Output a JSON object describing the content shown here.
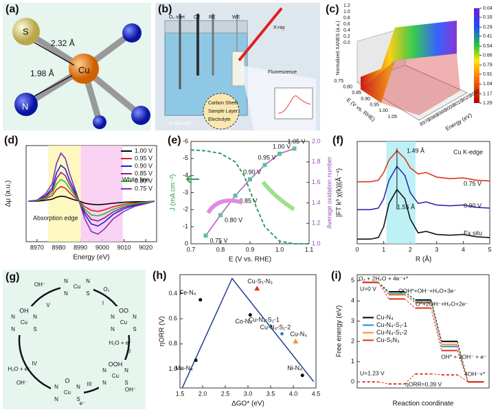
{
  "figure": {
    "a": {
      "label": "(a)",
      "atoms": [
        "S",
        "Cu",
        "N"
      ],
      "bonds": [
        "2.32 Å",
        "1.98 Å"
      ]
    },
    "b": {
      "label": "(b)",
      "texts": [
        "O₂ inlet",
        "CE",
        "RE",
        "WE",
        "X-ray",
        "Fluorescence",
        "In situ cell",
        "Carbon Sheet",
        "Sample Layer",
        "Electrolyte"
      ]
    },
    "c": {
      "label": "(c)",
      "z_label": "Normalized XANES (a.u.)",
      "y_label": "E (V vs. RHE)",
      "x_label": "Energy (eV)",
      "z_ticks": [
        "0.0",
        "0.2",
        "0.4",
        "0.6",
        "0.8",
        "1.0",
        "1.2"
      ],
      "e_ticks": [
        "0.75",
        "0.80",
        "0.85",
        "0.90",
        "0.95",
        "1.00",
        "1.05"
      ],
      "energy_ticks": [
        "8970",
        "8980",
        "8990",
        "9000",
        "9010",
        "9020",
        "9030"
      ],
      "colorbar": [
        0.04,
        0.16,
        0.29,
        0.41,
        0.54,
        0.66,
        0.79,
        0.91,
        1.04,
        1.17,
        1.29
      ]
    },
    "g": {
      "label": "(g)",
      "nodes": [
        {
          "atoms": [
            "Cu",
            "N",
            "N",
            "N",
            "S"
          ]
        },
        {
          "atoms": [
            "Cu",
            "N",
            "N",
            "N",
            "S"
          ],
          "adsorbate": "OO"
        },
        {
          "atoms": [
            "Cu",
            "N",
            "N",
            "N",
            "S"
          ],
          "adsorbate": "OOH"
        },
        {
          "atoms": [
            "Cu",
            "N",
            "N",
            "N",
            "S"
          ],
          "adsorbate": "O"
        },
        {
          "atoms": [
            "Cu",
            "N",
            "N",
            "N",
            "S"
          ],
          "adsorbate": "OH"
        }
      ],
      "steps": [
        "I",
        "II",
        "III",
        "IV",
        "V"
      ],
      "reagents": [
        "O₂",
        "H₂O + e⁻",
        "OH⁻",
        "e⁻",
        "H₂O + e⁻",
        "OH⁻",
        "OH⁻"
      ]
    }
  },
  "chart_data": [
    {
      "panel": "(d)",
      "type": "line",
      "x_label": "Energy (eV)",
      "y_label": "Δμ (a.u.)",
      "x": [
        8966,
        8970,
        8974,
        8977,
        8979,
        8981,
        8983,
        8985,
        8987,
        8989,
        8992,
        8995,
        8998,
        9001,
        9005,
        9010,
        9015,
        9020,
        9024
      ],
      "xlim": [
        8965,
        9025
      ],
      "xticks": [
        8970,
        8980,
        8990,
        9000,
        9010,
        9020
      ],
      "ylim": [
        -0.8,
        1.1
      ],
      "annotations": [
        "White line",
        "Absorption edge"
      ],
      "legend": "upper right",
      "series": [
        {
          "name": "1.00 V",
          "color": "#000000",
          "values": [
            0,
            0,
            0.02,
            0.04,
            0.08,
            0.1,
            0.09,
            0.06,
            0.03,
            0.01,
            -0.04,
            -0.06,
            -0.07,
            -0.06,
            -0.04,
            -0.02,
            -0.01,
            -0.01,
            0
          ]
        },
        {
          "name": "0.95 V",
          "color": "#e41a1c",
          "values": [
            0,
            0.01,
            0.05,
            0.11,
            0.23,
            0.29,
            0.26,
            0.17,
            0.09,
            0.02,
            -0.11,
            -0.18,
            -0.2,
            -0.17,
            -0.11,
            -0.06,
            -0.03,
            -0.02,
            0
          ]
        },
        {
          "name": "0.90 V",
          "color": "#1f1fd0",
          "values": [
            0,
            0.02,
            0.11,
            0.26,
            0.56,
            0.71,
            0.64,
            0.41,
            0.23,
            0.04,
            -0.26,
            -0.45,
            -0.49,
            -0.41,
            -0.26,
            -0.15,
            -0.08,
            -0.04,
            0
          ]
        },
        {
          "name": "0.85 V",
          "color": "#8b1a8b",
          "values": [
            0,
            0.01,
            0.09,
            0.21,
            0.45,
            0.57,
            0.51,
            0.33,
            0.18,
            0.03,
            -0.21,
            -0.36,
            -0.39,
            -0.33,
            -0.21,
            -0.12,
            -0.06,
            -0.03,
            0
          ]
        },
        {
          "name": "0.80 V",
          "color": "#22c222",
          "values": [
            0,
            0.01,
            0.07,
            0.16,
            0.34,
            0.43,
            0.38,
            0.25,
            0.14,
            0.02,
            -0.16,
            -0.27,
            -0.29,
            -0.25,
            -0.16,
            -0.09,
            -0.05,
            -0.02,
            0
          ]
        },
        {
          "name": "0.75 V",
          "color": "#7b2fbe",
          "values": [
            0,
            0.02,
            0.15,
            0.35,
            0.75,
            0.95,
            0.85,
            0.55,
            0.3,
            0.05,
            -0.35,
            -0.6,
            -0.65,
            -0.55,
            -0.35,
            -0.2,
            -0.1,
            -0.05,
            0
          ]
        }
      ]
    },
    {
      "panel": "(e)",
      "type": "line",
      "x_label": "E (V vs. RHE)",
      "y_label": "J (mA cm⁻²)",
      "y2_label": "Average oxidation number",
      "xlim": [
        0.7,
        1.1
      ],
      "xticks": [
        0.7,
        0.8,
        0.9,
        {
          "value": 1,
          "label": "1.0"
        },
        1.1
      ],
      "ylim": [
        0,
        -6
      ],
      "yticks": [
        0,
        -1,
        -2,
        -3,
        -4,
        -5,
        -6
      ],
      "y2lim": [
        1,
        2
      ],
      "y2ticks": [
        {
          "value": 1,
          "label": "1.0"
        },
        1.2,
        1.4,
        1.6,
        1.8,
        {
          "value": 2,
          "label": "2.0"
        }
      ],
      "series": [
        {
          "color": "#2aa05a",
          "dash": true,
          "x": [
            0.7,
            0.75,
            0.8,
            0.85,
            0.88,
            0.9,
            0.92,
            0.95,
            1.0,
            1.05,
            1.1
          ],
          "values": [
            -5.5,
            -5.45,
            -5.3,
            -4.8,
            -4.0,
            -3.1,
            -2.2,
            -1.0,
            -0.15,
            0,
            0
          ]
        },
        {
          "color": "#b05fc0",
          "axis": "y2",
          "markers": true,
          "x": [
            0.75,
            0.8,
            0.85,
            0.9,
            0.95,
            1.0,
            1.05
          ],
          "values": [
            1.08,
            1.28,
            1.47,
            1.63,
            1.77,
            1.88,
            1.93
          ],
          "point_labels": [
            "0.75 V",
            "0.80 V",
            "0.85 V",
            "0.90 V",
            "0.95 V",
            "1.00 V",
            "1.05 V"
          ]
        }
      ]
    },
    {
      "panel": "(f)",
      "type": "line",
      "x_label": "R (Å)",
      "y_label": "|FT k³ χ(k)|(Å⁻⁴)",
      "x": [
        0,
        0.5,
        0.8,
        1.0,
        1.2,
        1.5,
        1.8,
        2.0,
        2.3,
        2.6,
        3.0,
        3.5,
        4.0,
        4.5,
        5.0
      ],
      "xlim": [
        0,
        5
      ],
      "xticks": [
        0,
        1,
        2,
        3,
        4,
        5
      ],
      "ylim": [
        0,
        6.6
      ],
      "annotations": [
        "1.49 Å",
        "1.55 Å",
        "Cu K-edge"
      ],
      "series": [
        {
          "name": "0.75 V",
          "color": "#e0301e",
          "values": [
            4.0,
            4.0,
            4.1,
            4.6,
            5.4,
            6.0,
            5.5,
            4.9,
            4.5,
            4.6,
            4.3,
            4.2,
            4.25,
            4.1,
            4.05
          ]
        },
        {
          "name": "0.90 V",
          "color": "#2a2ab0",
          "values": [
            2.2,
            2.2,
            2.3,
            2.9,
            4.1,
            5.0,
            4.4,
            3.3,
            2.6,
            2.7,
            2.5,
            2.45,
            2.5,
            2.35,
            2.3
          ]
        },
        {
          "name": "Ex situ",
          "color": "#111111",
          "values": [
            0.3,
            0.3,
            0.4,
            1.1,
            2.6,
            3.5,
            2.9,
            1.6,
            0.7,
            0.8,
            0.6,
            0.55,
            0.6,
            0.45,
            0.4
          ]
        }
      ]
    },
    {
      "panel": "(h)",
      "type": "scatter",
      "x_label": "ΔGO* (eV)",
      "y_label": "ηORR (V)",
      "xlim": [
        1.5,
        4.5
      ],
      "xticks": [
        1.5,
        {
          "value": 2,
          "label": "2.0"
        },
        2.5,
        {
          "value": 3,
          "label": "3.0"
        },
        3.5,
        {
          "value": 4,
          "label": "4.0"
        },
        4.5
      ],
      "ylim": [
        1.15,
        0.25
      ],
      "yticks": [
        0.4,
        0.6,
        0.8,
        {
          "value": 1,
          "label": "1.0"
        }
      ],
      "labels": [
        "Fe-N₄",
        "Co-N₄",
        "Cu-S₁-N₃",
        "Cu-N₄-S₁-1",
        "Cu-N₄-S₁-2",
        "Cu-N₄",
        "Mn-N₄",
        "Ni-N₄"
      ],
      "x": [
        1.95,
        3.05,
        3.2,
        3.5,
        3.75,
        4.05,
        1.85,
        4.2
      ],
      "values": [
        0.45,
        0.57,
        0.36,
        0.66,
        0.72,
        0.78,
        0.93,
        1.05
      ],
      "colors": [
        "#000000",
        "#000000",
        "#e0301e",
        "#2a8ac0",
        "#2a8ac0",
        "#f0922a",
        "#000000",
        "#000000"
      ],
      "markers": [
        "circle",
        "circle",
        "triangle",
        "circle",
        "circle",
        "triangle",
        "circle",
        "circle"
      ],
      "volcano": {
        "color": "#1f3b8c",
        "x": [
          1.55,
          2.65,
          4.45
        ],
        "values": [
          1.15,
          0.28,
          1.1
        ]
      }
    },
    {
      "panel": "(i)",
      "type": "step",
      "x_label": "Reaction coordinate",
      "y_label": "Free energy (eV)",
      "categories": [
        null,
        null,
        null,
        null,
        null
      ],
      "ylim": [
        -0.3,
        5.3
      ],
      "yticks": [
        0,
        1,
        2,
        3,
        4,
        5
      ],
      "legend": "center left",
      "annotations": [
        "O₂ + 2H₂O + 4e⁻+*",
        "OOH*+OH⁻+H₂O+3e⁻",
        "O*+2OH⁻+H₂O+2e⁻",
        "OH* + 3OH⁻ + e⁻",
        "4OH⁻+*",
        "U=0 V",
        "U=1.23 V",
        "ηORR=0.39 V"
      ],
      "series": [
        {
          "name": "Cu-N₄",
          "color": "#000000",
          "values": [
            4.92,
            4.45,
            4.05,
            2.0,
            0
          ]
        },
        {
          "name": "Cu-N₄-S₁-1",
          "color": "#2a8ac0",
          "values": [
            4.92,
            4.35,
            3.95,
            1.75,
            0
          ]
        },
        {
          "name": "Cu-N₄-S₁-2",
          "color": "#f0922a",
          "values": [
            4.92,
            4.3,
            3.9,
            1.85,
            0
          ]
        },
        {
          "name": "Cu-S₁N₃",
          "color": "#e0301e",
          "values": [
            4.92,
            4.1,
            3.65,
            1.55,
            0
          ]
        },
        {
          "color": "#e0301e",
          "dash": true,
          "values": [
            0,
            -0.1,
            0.39,
            0.35,
            0
          ]
        }
      ]
    }
  ]
}
